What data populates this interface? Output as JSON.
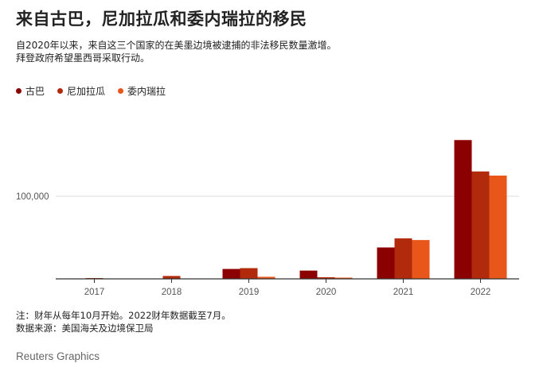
{
  "title": "来自古巴，尼加拉瓜和委内瑞拉的移民",
  "subtitle": [
    "自2020年以来，来自这三个国家的在美墨边境被逮捕的非法移民数量激增。",
    "拜登政府希望墨西哥采取行动。"
  ],
  "notes": [
    "注：财年从每年10月开始。2022财年数据截至7月。",
    "数据来源：美国海关及边境保卫局"
  ],
  "credit": "Reuters Graphics",
  "colors": {
    "cuba": "#8b0000",
    "nicaragua": "#b22a0c",
    "venezuela": "#e8561a",
    "axis": "#333333",
    "grid": "#dcdcdc"
  },
  "chart_data": {
    "type": "bar",
    "categories": [
      "2017",
      "2018",
      "2019",
      "2020",
      "2021",
      "2022"
    ],
    "series": [
      {
        "name": "古巴",
        "values": [
          500,
          300,
          12000,
          10000,
          38000,
          168000
        ]
      },
      {
        "name": "尼加拉瓜",
        "values": [
          1000,
          3500,
          13000,
          2000,
          49000,
          130000
        ]
      },
      {
        "name": "委内瑞拉",
        "values": [
          200,
          200,
          2500,
          1500,
          47000,
          125000
        ]
      }
    ],
    "ytick_labels": [
      "100,000"
    ],
    "yticks": [
      100000
    ],
    "ylim": [
      0,
      175000
    ],
    "grid": true,
    "legend": "top-left"
  }
}
